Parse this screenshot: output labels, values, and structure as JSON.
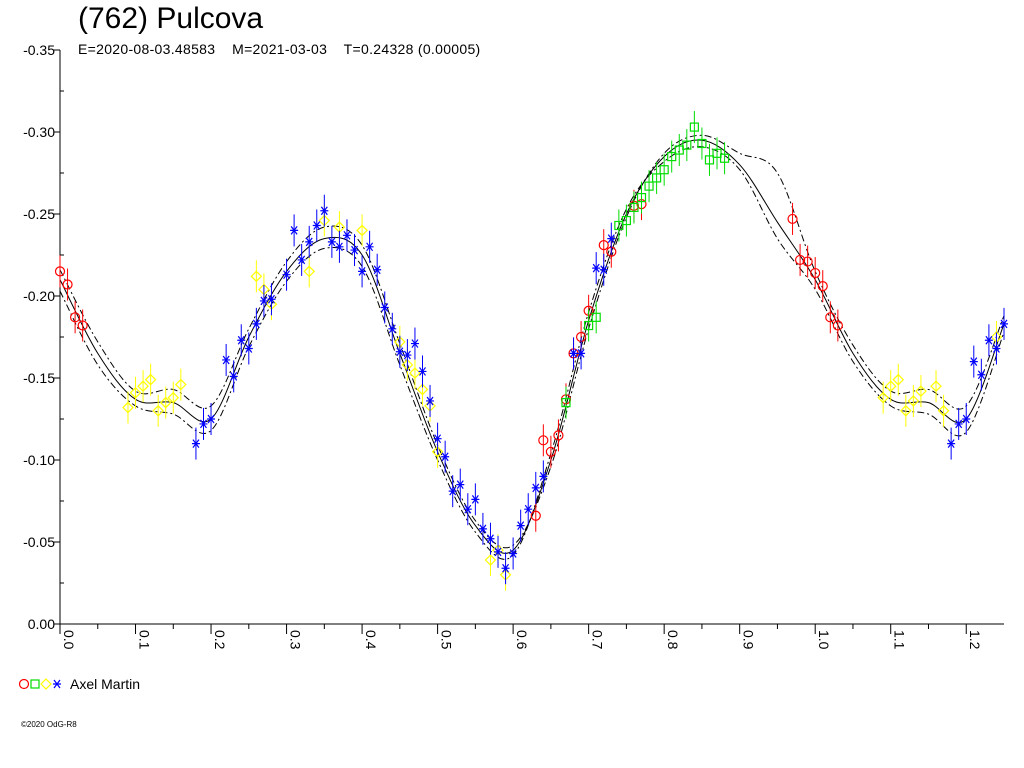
{
  "header": {
    "title": "(762) Pulcova",
    "subtitle": "E=2020-08-03.48583    M=2021-03-03    T=0.24328 (0.00005)"
  },
  "legend": {
    "label": "Axel Martin",
    "symbols": [
      {
        "shape": "circle",
        "color": "#ff0000"
      },
      {
        "shape": "square",
        "color": "#00dd00"
      },
      {
        "shape": "diamond",
        "color": "#ffff00"
      },
      {
        "shape": "star",
        "color": "#0000ff"
      }
    ]
  },
  "copyright": "©2020 OdG-R8",
  "chart_data": {
    "type": "scatter",
    "title": "(762) Pulcova",
    "xlim": [
      0.0,
      1.25
    ],
    "ylim": [
      0.0,
      -0.35
    ],
    "y_inverted": true,
    "x_ticks": [
      "0.0",
      "0.1",
      "0.2",
      "0.3",
      "0.4",
      "0.5",
      "0.6",
      "0.7",
      "0.8",
      "0.9",
      "1.0",
      "1.1",
      "1.2"
    ],
    "x_tick_values": [
      0.0,
      0.1,
      0.2,
      0.3,
      0.4,
      0.5,
      0.6,
      0.7,
      0.8,
      0.9,
      1.0,
      1.1,
      1.2
    ],
    "y_ticks": [
      "0.00",
      "-0.05",
      "-0.10",
      "-0.15",
      "-0.20",
      "-0.25",
      "-0.30",
      "-0.35"
    ],
    "y_tick_values": [
      0.0,
      -0.05,
      -0.1,
      -0.15,
      -0.2,
      -0.25,
      -0.3,
      -0.35
    ],
    "grid": false,
    "legend_position": "bottom-left",
    "colors": {
      "red": "#ff0000",
      "green": "#00dd00",
      "yellow": "#ffff00",
      "blue": "#0000ff"
    },
    "curves": [
      {
        "style": "solid",
        "x": [
          0.0,
          0.05,
          0.1,
          0.15,
          0.2,
          0.25,
          0.3,
          0.35,
          0.4,
          0.45,
          0.5,
          0.55,
          0.6,
          0.65,
          0.7,
          0.75,
          0.8,
          0.85,
          0.9,
          0.95,
          1.0,
          1.05,
          1.1,
          1.15,
          1.2,
          1.25
        ],
        "y": [
          -0.21,
          -0.165,
          -0.137,
          -0.135,
          -0.125,
          -0.175,
          -0.215,
          -0.235,
          -0.225,
          -0.165,
          -0.105,
          -0.06,
          -0.045,
          -0.1,
          -0.185,
          -0.25,
          -0.285,
          -0.295,
          -0.28,
          -0.245,
          -0.21,
          -0.165,
          -0.137,
          -0.135,
          -0.125,
          -0.183
        ]
      },
      {
        "style": "dashdot",
        "x": [
          0.0,
          0.05,
          0.1,
          0.15,
          0.2,
          0.25,
          0.3,
          0.35,
          0.4,
          0.45,
          0.5,
          0.55,
          0.6,
          0.65,
          0.7,
          0.75,
          0.8,
          0.85,
          0.9,
          0.95,
          1.0,
          1.05,
          1.1,
          1.15,
          1.2,
          1.25
        ],
        "y": [
          -0.216,
          -0.172,
          -0.142,
          -0.143,
          -0.133,
          -0.18,
          -0.221,
          -0.242,
          -0.231,
          -0.171,
          -0.109,
          -0.063,
          -0.048,
          -0.096,
          -0.18,
          -0.248,
          -0.287,
          -0.298,
          -0.287,
          -0.275,
          -0.215,
          -0.17,
          -0.142,
          -0.143,
          -0.133,
          -0.188
        ]
      },
      {
        "style": "dashdot",
        "x": [
          0.0,
          0.05,
          0.1,
          0.15,
          0.2,
          0.25,
          0.3,
          0.35,
          0.4,
          0.45,
          0.5,
          0.55,
          0.6,
          0.65,
          0.7,
          0.75,
          0.8,
          0.85,
          0.9,
          0.95,
          1.0,
          1.05,
          1.1,
          1.15,
          1.2,
          1.25
        ],
        "y": [
          -0.203,
          -0.158,
          -0.133,
          -0.128,
          -0.118,
          -0.169,
          -0.209,
          -0.229,
          -0.218,
          -0.158,
          -0.1,
          -0.056,
          -0.042,
          -0.104,
          -0.19,
          -0.253,
          -0.282,
          -0.291,
          -0.277,
          -0.235,
          -0.204,
          -0.16,
          -0.133,
          -0.128,
          -0.117,
          -0.178
        ]
      }
    ],
    "series": [
      {
        "marker": "circle",
        "color": "#ff0000",
        "x": [
          0.0,
          0.01,
          0.02,
          0.03,
          0.63,
          0.64,
          0.65,
          0.66,
          0.67,
          0.68,
          0.69,
          0.7,
          0.72,
          0.73,
          0.76,
          0.77,
          0.97,
          0.98,
          0.99,
          1.0,
          1.01,
          1.02,
          1.03
        ],
        "y": [
          -0.215,
          -0.207,
          -0.187,
          -0.182,
          -0.066,
          -0.112,
          -0.105,
          -0.115,
          -0.137,
          -0.165,
          -0.175,
          -0.191,
          -0.231,
          -0.227,
          -0.255,
          -0.256,
          -0.247,
          -0.222,
          -0.221,
          -0.214,
          -0.206,
          -0.187,
          -0.182
        ]
      },
      {
        "marker": "square",
        "color": "#00dd00",
        "x": [
          0.67,
          0.7,
          0.71,
          0.74,
          0.75,
          0.76,
          0.77,
          0.78,
          0.79,
          0.8,
          0.81,
          0.82,
          0.83,
          0.84,
          0.85,
          0.86,
          0.87,
          0.88
        ],
        "y": [
          -0.135,
          -0.182,
          -0.187,
          -0.243,
          -0.246,
          -0.254,
          -0.26,
          -0.267,
          -0.272,
          -0.277,
          -0.285,
          -0.289,
          -0.292,
          -0.303,
          -0.293,
          -0.283,
          -0.287,
          -0.284
        ]
      },
      {
        "marker": "diamond",
        "color": "#ffff00",
        "x": [
          0.09,
          0.1,
          0.11,
          0.12,
          0.13,
          0.14,
          0.15,
          0.16,
          0.26,
          0.27,
          0.28,
          0.33,
          0.35,
          0.37,
          0.4,
          0.45,
          0.46,
          0.47,
          0.48,
          0.49,
          0.5,
          0.57,
          0.58,
          0.59,
          1.09,
          1.1,
          1.11,
          1.12,
          1.13,
          1.14,
          1.16,
          1.17,
          1.24
        ],
        "y": [
          -0.132,
          -0.141,
          -0.145,
          -0.149,
          -0.13,
          -0.135,
          -0.138,
          -0.146,
          -0.212,
          -0.204,
          -0.195,
          -0.215,
          -0.246,
          -0.242,
          -0.24,
          -0.172,
          -0.158,
          -0.153,
          -0.143,
          -0.133,
          -0.105,
          -0.039,
          -0.045,
          -0.03,
          -0.138,
          -0.145,
          -0.149,
          -0.13,
          -0.136,
          -0.142,
          -0.145,
          -0.13,
          -0.175
        ]
      },
      {
        "marker": "star",
        "color": "#0000ff",
        "x": [
          0.18,
          0.19,
          0.2,
          0.22,
          0.23,
          0.24,
          0.25,
          0.26,
          0.27,
          0.28,
          0.3,
          0.31,
          0.32,
          0.33,
          0.34,
          0.35,
          0.36,
          0.37,
          0.38,
          0.39,
          0.4,
          0.41,
          0.42,
          0.43,
          0.44,
          0.45,
          0.46,
          0.47,
          0.48,
          0.49,
          0.5,
          0.51,
          0.52,
          0.53,
          0.54,
          0.55,
          0.56,
          0.57,
          0.58,
          0.59,
          0.6,
          0.61,
          0.62,
          0.63,
          0.64,
          0.68,
          0.69,
          0.71,
          0.72,
          0.73,
          1.18,
          1.19,
          1.2,
          1.21,
          1.22,
          1.23,
          1.24,
          1.25
        ],
        "y": [
          -0.11,
          -0.122,
          -0.125,
          -0.161,
          -0.151,
          -0.173,
          -0.168,
          -0.183,
          -0.197,
          -0.198,
          -0.213,
          -0.24,
          -0.222,
          -0.233,
          -0.243,
          -0.252,
          -0.233,
          -0.23,
          -0.237,
          -0.228,
          -0.215,
          -0.23,
          -0.216,
          -0.193,
          -0.18,
          -0.166,
          -0.164,
          -0.171,
          -0.154,
          -0.136,
          -0.113,
          -0.102,
          -0.081,
          -0.085,
          -0.07,
          -0.076,
          -0.058,
          -0.052,
          -0.044,
          -0.034,
          -0.043,
          -0.06,
          -0.07,
          -0.083,
          -0.09,
          -0.165,
          -0.165,
          -0.217,
          -0.216,
          -0.235,
          -0.11,
          -0.122,
          -0.125,
          -0.16,
          -0.152,
          -0.173,
          -0.168,
          -0.183
        ]
      }
    ]
  }
}
